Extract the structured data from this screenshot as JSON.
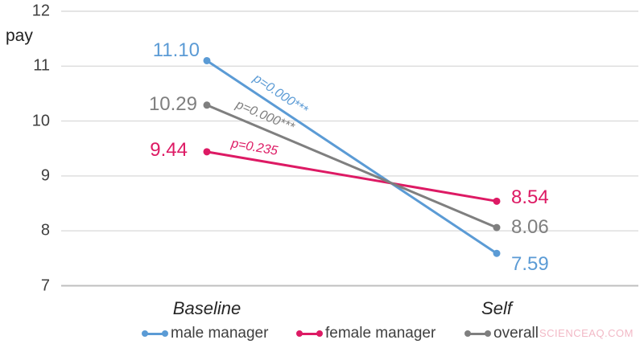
{
  "watermark": "SCIENCEAQ.COM",
  "chart_data": {
    "type": "line",
    "title": "",
    "xlabel": "",
    "ylabel": "pay",
    "categories": [
      "Baseline",
      "Self"
    ],
    "ylim": [
      7,
      12
    ],
    "y_ticks": [
      "12",
      "11",
      "10",
      "9",
      "8",
      "7"
    ],
    "grid": true,
    "legend_position": "bottom",
    "series": [
      {
        "name": "male manager",
        "color": "#5B9BD5",
        "values": [
          11.1,
          7.59
        ],
        "value_labels": [
          "11.10",
          "7.59"
        ],
        "p_label": "p=0.000***",
        "p_pos": 0.23,
        "label_offsets": {
          "start": [
            -9,
            -12
          ],
          "end": [
            18,
            14
          ]
        }
      },
      {
        "name": "female manager",
        "color": "#DD1A64",
        "values": [
          9.44,
          8.54
        ],
        "value_labels": [
          "9.44",
          "8.54"
        ],
        "p_label": "p=0.235",
        "p_pos": 0.156,
        "label_offsets": {
          "start": [
            -24,
            -2
          ],
          "end": [
            18,
            -4
          ]
        }
      },
      {
        "name": "overall",
        "color": "#7F7F7F",
        "values": [
          10.29,
          8.06
        ],
        "value_labels": [
          "10.29",
          "8.06"
        ],
        "p_label": "p=0.000***",
        "p_pos": 0.183,
        "label_offsets": {
          "start": [
            -12,
            -1
          ],
          "end": [
            18,
            0
          ]
        }
      }
    ],
    "colors": {
      "gridline": "#DCDCDC",
      "axis_line": "#BFBFBF",
      "tick_text": "#3F3F3F",
      "watermark": "#F2B9C6"
    }
  }
}
